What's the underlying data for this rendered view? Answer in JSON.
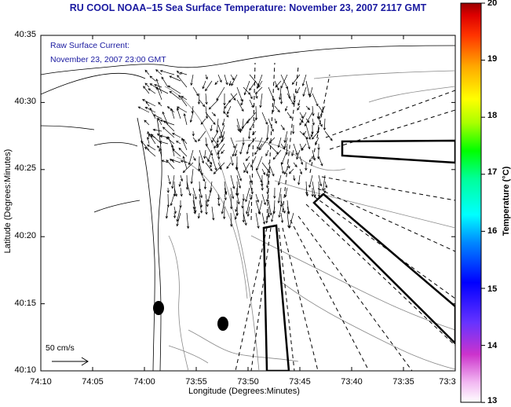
{
  "title": "RU COOL  NOAA–15  Sea Surface Temperature:  November 23, 2007 2117 GMT",
  "legend": {
    "line1": "Raw Surface Current:",
    "line2": "November 23, 2007 23:00 GMT"
  },
  "scale_label": "50 cm/s",
  "axes": {
    "xlabel": "Longitude (Degrees:Minutes)",
    "ylabel": "Latitude (Degrees:Minutes)",
    "xticks": [
      "74:10",
      "74:05",
      "74:00",
      "73:55",
      "73:50",
      "73:45",
      "73:40",
      "73:35",
      "73:3"
    ],
    "yticks": [
      "40:35",
      "40:30",
      "40:25",
      "40:20",
      "40:15",
      "40:10"
    ]
  },
  "colorbar": {
    "title": "Temperature (°C)",
    "ticks": [
      "20",
      "19",
      "18",
      "17",
      "16",
      "15",
      "14",
      "13"
    ]
  }
}
